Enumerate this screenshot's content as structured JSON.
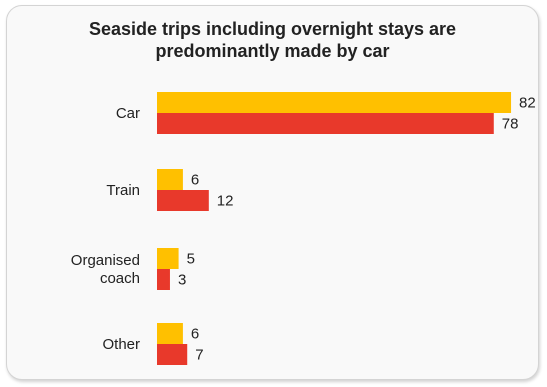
{
  "chart_data": {
    "type": "bar",
    "orientation": "horizontal",
    "title_lines": [
      "Seaside trips including overnight stays are",
      "predominantly made by car"
    ],
    "categories": [
      [
        "Car"
      ],
      [
        "Train"
      ],
      [
        "Organised",
        "coach"
      ],
      [
        "Other"
      ]
    ],
    "series": [
      {
        "values": [
          82,
          6,
          5,
          6
        ],
        "color": "#FFC000"
      },
      {
        "values": [
          78,
          12,
          3,
          7
        ],
        "color": "#E8392B"
      }
    ],
    "xlim": [
      0,
      85
    ],
    "grid": false,
    "legend": "none"
  }
}
